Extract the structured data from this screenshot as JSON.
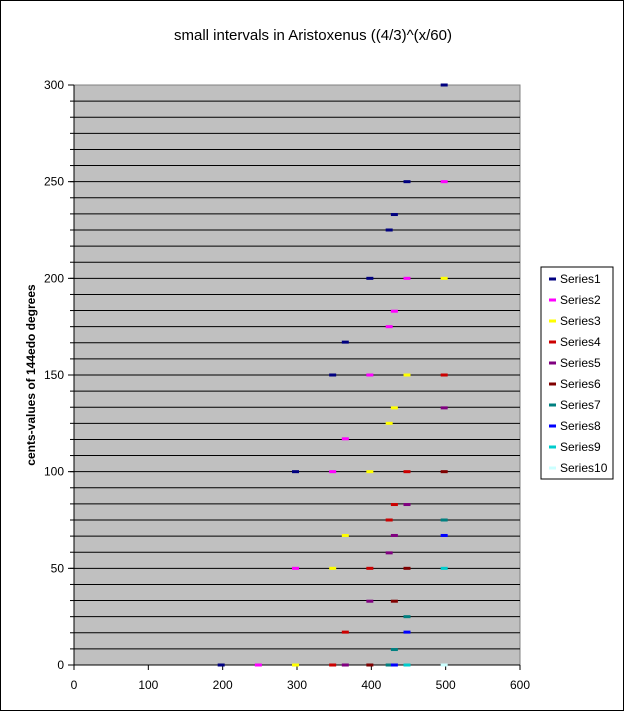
{
  "chart_data": {
    "type": "scatter",
    "title": "small intervals in Aristoxenus ((4/3)^(x/60)",
    "xlabel": "",
    "ylabel": "cents-values of 144edo degrees",
    "xlim": [
      0,
      600
    ],
    "ylim": [
      0,
      300
    ],
    "x_ticks": [
      "0",
      "100",
      "200",
      "300",
      "400",
      "500",
      "600"
    ],
    "y_ticks": [
      "0",
      "50",
      "100",
      "150",
      "200",
      "250",
      "300"
    ],
    "grid": "horizontal every 8.33 cents (one 144edo degree interval pair)",
    "legend_position": "right",
    "plot_background": "#c0c0c0",
    "series": [
      {
        "name": "Series1",
        "color": "#000080",
        "points": [
          [
            498,
            300
          ],
          [
            448,
            250
          ],
          [
            431,
            233
          ],
          [
            424,
            225
          ],
          [
            398,
            200
          ],
          [
            365,
            167
          ],
          [
            348,
            150
          ],
          [
            298,
            100
          ],
          [
            198,
            0
          ]
        ]
      },
      {
        "name": "Series2",
        "color": "#ff00ff",
        "points": [
          [
            498,
            250
          ],
          [
            448,
            200
          ],
          [
            431,
            183
          ],
          [
            424,
            175
          ],
          [
            398,
            150
          ],
          [
            365,
            117
          ],
          [
            348,
            100
          ],
          [
            298,
            50
          ],
          [
            248,
            0
          ]
        ]
      },
      {
        "name": "Series3",
        "color": "#ffff00",
        "points": [
          [
            498,
            200
          ],
          [
            448,
            150
          ],
          [
            431,
            133
          ],
          [
            424,
            125
          ],
          [
            398,
            100
          ],
          [
            365,
            67
          ],
          [
            348,
            50
          ],
          [
            298,
            0
          ]
        ]
      },
      {
        "name": "Series4",
        "color": "#cc0000",
        "points": [
          [
            498,
            150
          ],
          [
            448,
            100
          ],
          [
            431,
            83
          ],
          [
            424,
            75
          ],
          [
            398,
            50
          ],
          [
            365,
            17
          ],
          [
            348,
            0
          ]
        ]
      },
      {
        "name": "Series5",
        "color": "#800080",
        "points": [
          [
            498,
            133
          ],
          [
            448,
            83
          ],
          [
            431,
            67
          ],
          [
            424,
            58
          ],
          [
            398,
            33
          ],
          [
            365,
            0
          ]
        ]
      },
      {
        "name": "Series6",
        "color": "#800000",
        "points": [
          [
            498,
            100
          ],
          [
            448,
            50
          ],
          [
            431,
            33
          ],
          [
            398,
            0
          ]
        ]
      },
      {
        "name": "Series7",
        "color": "#008080",
        "points": [
          [
            498,
            75
          ],
          [
            448,
            25
          ],
          [
            431,
            8
          ],
          [
            424,
            0
          ]
        ]
      },
      {
        "name": "Series8",
        "color": "#0000ff",
        "points": [
          [
            498,
            67
          ],
          [
            448,
            17
          ],
          [
            431,
            0
          ]
        ]
      },
      {
        "name": "Series9",
        "color": "#00cccc",
        "points": [
          [
            498,
            50
          ],
          [
            448,
            0
          ]
        ]
      },
      {
        "name": "Series10",
        "color": "#ccffff",
        "points": [
          [
            498,
            0
          ]
        ]
      }
    ]
  }
}
